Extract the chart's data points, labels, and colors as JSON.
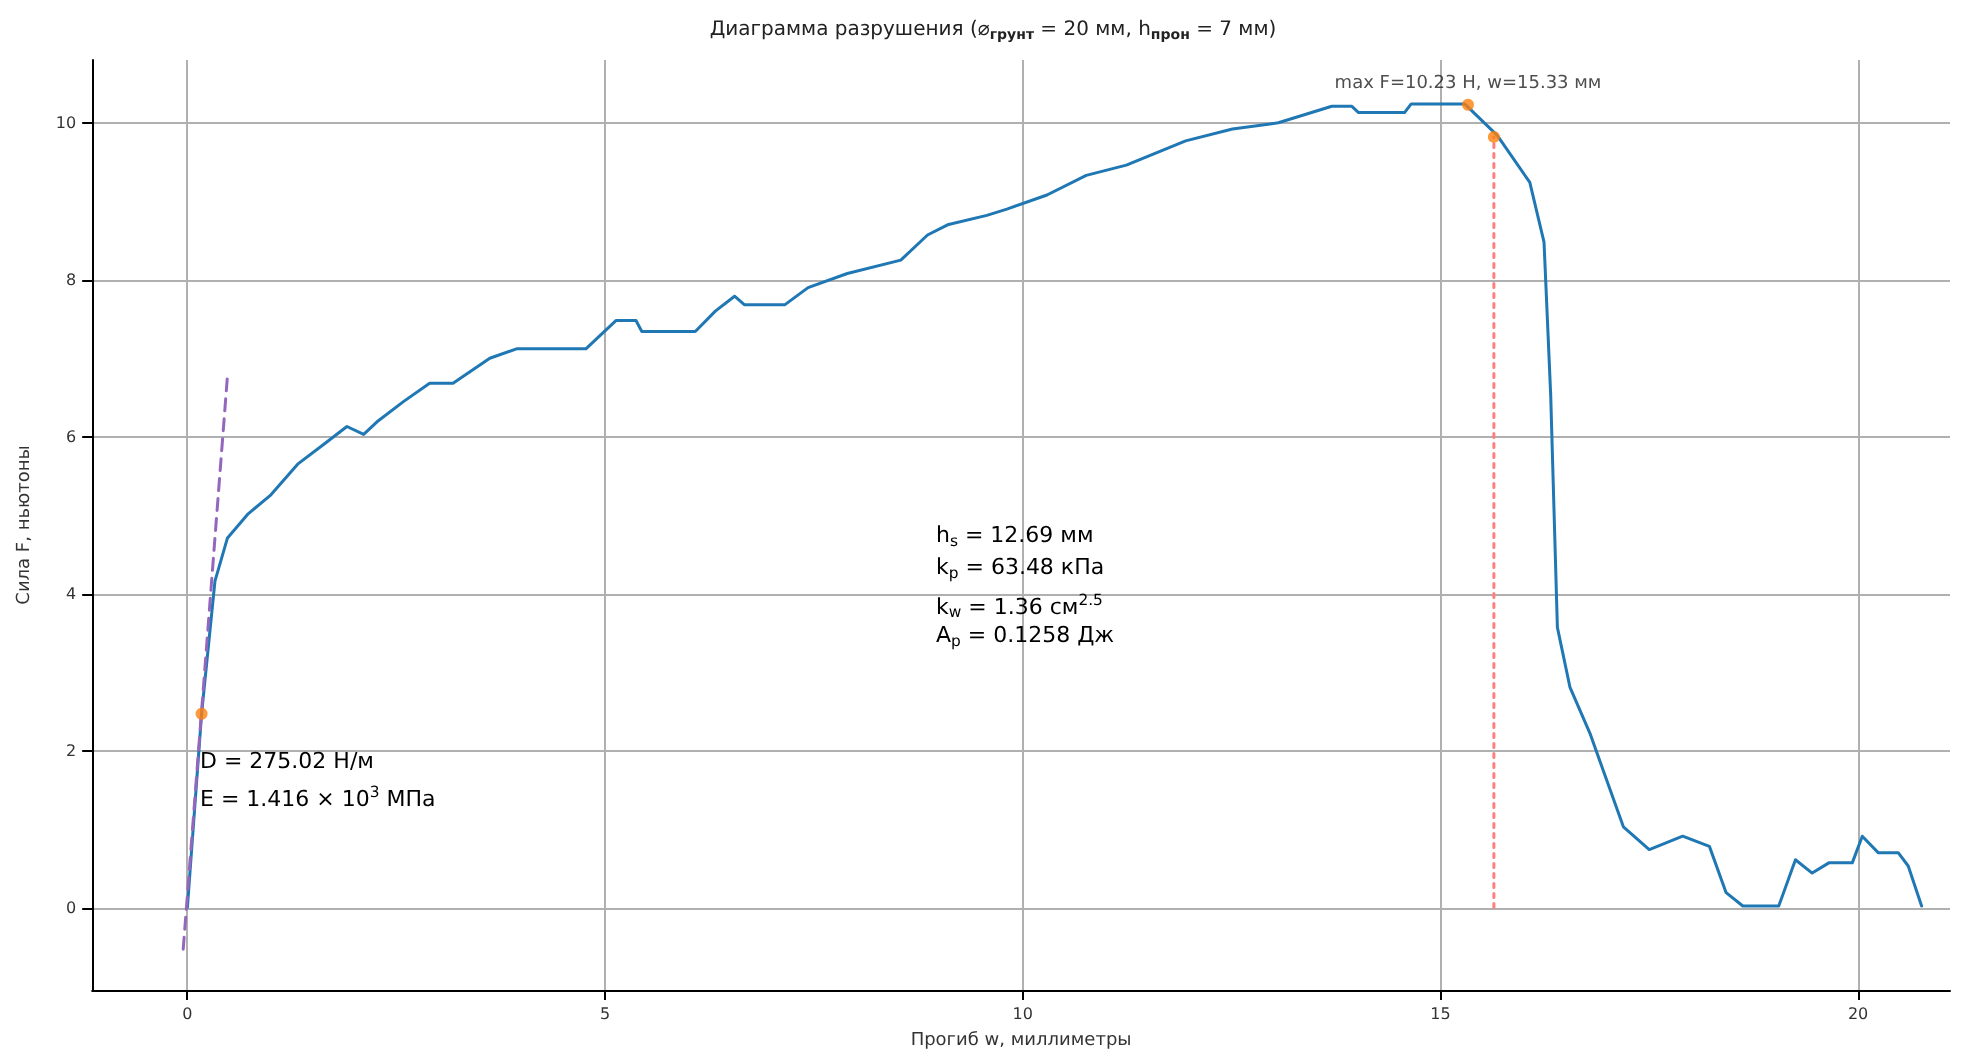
{
  "chart_data": {
    "type": "line",
    "title": "Диаграмма разрушения (⌀$_{грунт}$ = 20 мм, h$_{прон}$ = 7 мм)",
    "xlabel": "Прогиб w, миллиметры",
    "ylabel": "Сила F, ньютоны",
    "xlim": [
      -1.14,
      21.1
    ],
    "xticks": [
      0,
      5,
      10,
      15,
      20
    ],
    "ylim": [
      -1.05,
      10.8
    ],
    "yticks": [
      0,
      2,
      4,
      6,
      8,
      10
    ],
    "grid": true,
    "series": [
      {
        "color": "#1f77b4",
        "marker": "none",
        "line_style": "solid",
        "x": [
          0,
          0.17,
          0.33,
          0.48,
          0.72,
          1.0,
          1.32,
          1.63,
          1.91,
          2.11,
          2.27,
          2.59,
          2.9,
          3.18,
          3.62,
          3.94,
          4.77,
          5.13,
          5.37,
          5.44,
          6.08,
          6.32,
          6.55,
          6.67,
          7.15,
          7.43,
          7.9,
          8.54,
          8.86,
          9.1,
          9.57,
          9.81,
          10.29,
          10.76,
          11.24,
          11.95,
          12.51,
          13.06,
          13.7,
          13.94,
          14.02,
          14.57,
          14.65,
          15.29,
          15.68,
          16.07,
          16.24,
          16.32,
          16.4,
          16.55,
          16.79,
          17.19,
          17.5,
          17.9,
          18.22,
          18.42,
          18.62,
          19.05,
          19.25,
          19.45,
          19.65,
          19.93,
          20.05,
          20.24,
          20.48,
          20.6,
          20.76
        ],
        "values": [
          0,
          2.47,
          4.16,
          4.71,
          5.01,
          5.26,
          5.65,
          5.9,
          6.13,
          6.03,
          6.19,
          6.45,
          6.68,
          6.68,
          7.0,
          7.12,
          7.12,
          7.48,
          7.48,
          7.34,
          7.34,
          7.6,
          7.79,
          7.68,
          7.68,
          7.9,
          8.08,
          8.25,
          8.57,
          8.7,
          8.82,
          8.9,
          9.08,
          9.33,
          9.46,
          9.77,
          9.92,
          10.0,
          10.21,
          10.21,
          10.13,
          10.13,
          10.24,
          10.24,
          9.84,
          9.24,
          8.48,
          6.53,
          3.57,
          2.81,
          2.22,
          1.03,
          0.74,
          0.91,
          0.78,
          0.19,
          0.02,
          0.02,
          0.61,
          0.44,
          0.57,
          0.57,
          0.91,
          0.7,
          0.7,
          0.53,
          0.02
        ]
      },
      {
        "color": "#9467bd",
        "marker": "none",
        "line_style": "dashed",
        "x": [
          -0.05,
          0.48
        ],
        "values": [
          -0.53,
          6.78
        ]
      },
      {
        "color": "#ff7f7f",
        "marker": "none",
        "line_style": "dotted",
        "x": [
          15.64,
          15.64
        ],
        "values": [
          0,
          9.82
        ]
      },
      {
        "type": "scatter",
        "color": "#ff7f0e",
        "marker": "circle",
        "x": [
          0.17,
          15.33,
          15.64
        ],
        "values": [
          2.47,
          10.23,
          9.82
        ]
      }
    ],
    "annotations": [
      {
        "text": "max F=10.23 Н, w=15.33 мм",
        "x": 15.33,
        "y": 10.23
      },
      "D = 275.02 Н/м",
      "E = 1.416 × 10$^{3}$ МПа",
      "h$_{s}$ = 12.69 мм",
      "k$_{p}$ = 63.48 кПа",
      "k$_{w}$ = 1.36 см$^{2.5}$",
      "A$_{p}$ = 0.1258 Дж"
    ]
  }
}
